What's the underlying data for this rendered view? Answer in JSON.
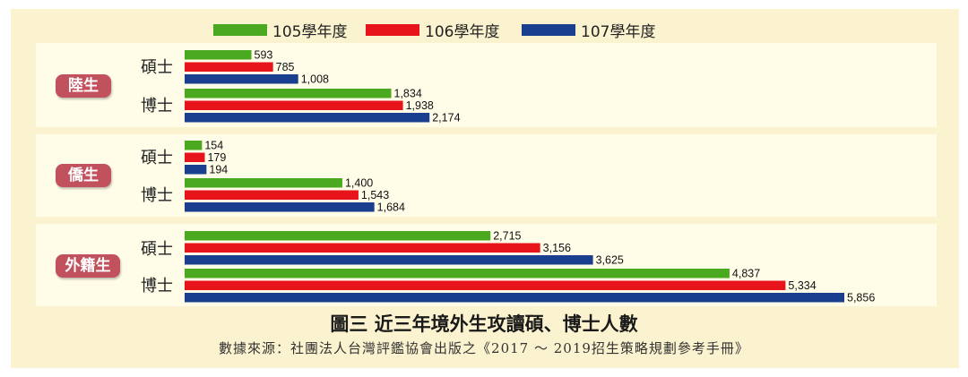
{
  "chart_data": {
    "type": "bar",
    "orientation": "horizontal",
    "title": "圖三 近三年境外生攻讀碩、博士人數",
    "source": "數據來源：社團法人台灣評鑑協會出版之《2017 ～ 2019招生策略規劃參考手冊》",
    "legend_position": "top",
    "series": [
      {
        "name": "105學年度",
        "color": "#4aa91e"
      },
      {
        "name": "106學年度",
        "color": "#e8141c"
      },
      {
        "name": "107學年度",
        "color": "#1b3f8f"
      }
    ],
    "groups": [
      {
        "label": "陸生",
        "rows": [
          {
            "label": "碩士",
            "values": [
              593,
              785,
              1008
            ],
            "value_labels": [
              "593",
              "785",
              "1,008"
            ]
          },
          {
            "label": "博士",
            "values": [
              1834,
              1938,
              2174
            ],
            "value_labels": [
              "1,834",
              "1,938",
              "2,174"
            ]
          }
        ]
      },
      {
        "label": "僑生",
        "rows": [
          {
            "label": "碩士",
            "values": [
              154,
              179,
              194
            ],
            "value_labels": [
              "154",
              "179",
              "194"
            ]
          },
          {
            "label": "博士",
            "values": [
              1400,
              1543,
              1684
            ],
            "value_labels": [
              "1,400",
              "1,543",
              "1,684"
            ]
          }
        ]
      },
      {
        "label": "外籍生",
        "rows": [
          {
            "label": "碩士",
            "values": [
              2715,
              3156,
              3625
            ],
            "value_labels": [
              "2,715",
              "3,156",
              "3,625"
            ]
          },
          {
            "label": "博士",
            "values": [
              4837,
              5334,
              5856
            ],
            "value_labels": [
              "4,837",
              "5,334",
              "5,856"
            ]
          }
        ]
      }
    ],
    "xlim": [
      0,
      5856
    ],
    "grid": false
  }
}
